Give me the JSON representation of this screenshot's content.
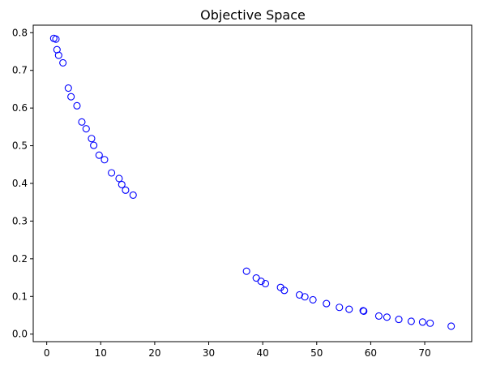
{
  "chart_data": {
    "type": "scatter",
    "title": "Objective Space",
    "xlabel": "",
    "ylabel": "",
    "xlim": [
      -2.5,
      78.7
    ],
    "ylim": [
      -0.02,
      0.82
    ],
    "xticks": [
      0,
      10,
      20,
      30,
      40,
      50,
      60,
      70
    ],
    "yticks": [
      0.0,
      0.1,
      0.2,
      0.3,
      0.4,
      0.5,
      0.6,
      0.7,
      0.8
    ],
    "ytick_labels": [
      "0.0",
      "0.1",
      "0.2",
      "0.3",
      "0.4",
      "0.5",
      "0.6",
      "0.7",
      "0.8"
    ],
    "grid": false,
    "marker": "open-circle",
    "marker_color": "#0000ff",
    "series": [
      {
        "points": [
          [
            1.3,
            0.785
          ],
          [
            1.7,
            0.783
          ],
          [
            1.9,
            0.755
          ],
          [
            2.2,
            0.74
          ],
          [
            3.0,
            0.72
          ],
          [
            4.0,
            0.653
          ],
          [
            4.5,
            0.63
          ],
          [
            5.6,
            0.606
          ],
          [
            6.5,
            0.563
          ],
          [
            7.3,
            0.545
          ],
          [
            8.3,
            0.519
          ],
          [
            8.7,
            0.501
          ],
          [
            9.7,
            0.475
          ],
          [
            10.7,
            0.463
          ],
          [
            12.0,
            0.428
          ],
          [
            13.4,
            0.413
          ],
          [
            13.9,
            0.397
          ],
          [
            14.6,
            0.382
          ],
          [
            16.0,
            0.369
          ],
          [
            37.0,
            0.167
          ],
          [
            38.8,
            0.149
          ],
          [
            39.7,
            0.14
          ],
          [
            40.5,
            0.134
          ],
          [
            43.3,
            0.124
          ],
          [
            44.0,
            0.116
          ],
          [
            46.8,
            0.104
          ],
          [
            47.8,
            0.099
          ],
          [
            49.3,
            0.091
          ],
          [
            51.8,
            0.081
          ],
          [
            54.2,
            0.071
          ],
          [
            56.0,
            0.066
          ],
          [
            58.6,
            0.062
          ],
          [
            58.7,
            0.061
          ],
          [
            61.5,
            0.048
          ],
          [
            63.0,
            0.045
          ],
          [
            65.2,
            0.039
          ],
          [
            67.5,
            0.034
          ],
          [
            69.6,
            0.032
          ],
          [
            71.0,
            0.029
          ],
          [
            74.9,
            0.021
          ]
        ]
      }
    ]
  }
}
